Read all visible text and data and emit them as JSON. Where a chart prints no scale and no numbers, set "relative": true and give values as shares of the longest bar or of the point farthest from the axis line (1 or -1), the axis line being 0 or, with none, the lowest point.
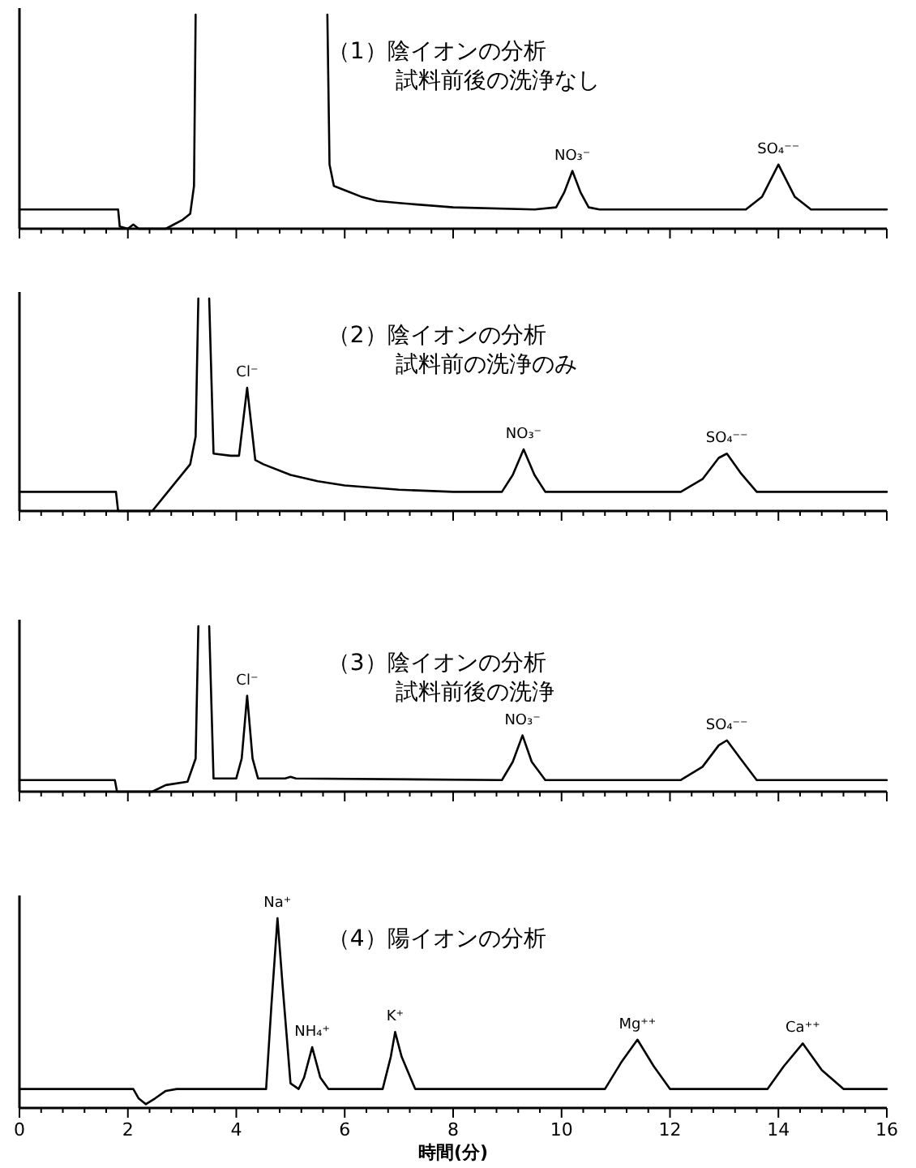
{
  "chart_data": [
    {
      "type": "line",
      "relative": true,
      "title": "（1）陰イオンの分析",
      "subtitle": "試料前後の洗浄なし",
      "xlim": [
        0,
        16
      ],
      "tick_labels": false,
      "xticks": [
        0,
        {
          "value": 0.4,
          "label": null
        },
        {
          "value": 0.8,
          "label": null
        },
        {
          "value": 1.2,
          "label": null
        },
        {
          "value": 1.6,
          "label": null
        },
        2,
        {
          "value": 2.4,
          "label": null
        },
        {
          "value": 2.8,
          "label": null
        },
        {
          "value": 3.2,
          "label": null
        },
        {
          "value": 3.6,
          "label": null
        },
        4,
        {
          "value": 4.4,
          "label": null
        },
        {
          "value": 4.8,
          "label": null
        },
        {
          "value": 5.2,
          "label": null
        },
        {
          "value": 5.6,
          "label": null
        },
        6,
        {
          "value": 6.4,
          "label": null
        },
        {
          "value": 6.8,
          "label": null
        },
        {
          "value": 7.2,
          "label": null
        },
        {
          "value": 7.6,
          "label": null
        },
        8,
        {
          "value": 8.4,
          "label": null
        },
        {
          "value": 8.8,
          "label": null
        },
        {
          "value": 9.2,
          "label": null
        },
        {
          "value": 9.6,
          "label": null
        },
        10,
        {
          "value": 10.4,
          "label": null
        },
        {
          "value": 10.8,
          "label": null
        },
        {
          "value": 11.2,
          "label": null
        },
        {
          "value": 11.6,
          "label": null
        },
        12,
        {
          "value": 12.4,
          "label": null
        },
        {
          "value": 12.8,
          "label": null
        },
        {
          "value": 13.2,
          "label": null
        },
        {
          "value": 13.6,
          "label": null
        },
        14,
        {
          "value": 14.4,
          "label": null
        },
        {
          "value": 14.8,
          "label": null
        },
        {
          "value": 15.2,
          "label": null
        },
        {
          "value": 15.6,
          "label": null
        },
        16
      ],
      "series": [
        {
          "color": "#000000",
          "x": [
            0,
            1.82,
            1.85,
            2.0,
            2.1,
            2.2,
            2.7,
            3.0,
            3.15,
            3.22,
            3.25
          ],
          "values": [
            0.09,
            0.09,
            0.01,
            0.0,
            0.02,
            0.0,
            0.0,
            0.04,
            0.07,
            0.2,
            1
          ]
        },
        {
          "color": "#000000",
          "x": [
            5.68,
            5.72,
            5.8,
            6.0,
            6.3,
            6.6,
            7.0,
            8.0,
            9.5,
            9.9,
            10.05,
            10.2,
            10.35,
            10.5,
            10.7,
            13.4,
            13.7,
            14.0,
            14.3,
            14.6,
            16
          ],
          "values": [
            1,
            0.3,
            0.2,
            0.18,
            0.15,
            0.13,
            0.12,
            0.1,
            0.09,
            0.1,
            0.17,
            0.27,
            0.17,
            0.1,
            0.09,
            0.09,
            0.15,
            0.3,
            0.15,
            0.09,
            0.09
          ]
        }
      ],
      "annotations": [
        {
          "text": "NO₃⁻",
          "x": 10.2,
          "y": 0.27
        },
        {
          "text": "SO₄⁻⁻",
          "x": 14.0,
          "y": 0.3
        }
      ]
    },
    {
      "type": "line",
      "relative": true,
      "title": "（2）陰イオンの分析",
      "subtitle": "試料前の洗浄のみ",
      "xlim": [
        0,
        16
      ],
      "tick_labels": false,
      "xticks": [
        0,
        {
          "value": 0.4,
          "label": null
        },
        {
          "value": 0.8,
          "label": null
        },
        {
          "value": 1.2,
          "label": null
        },
        {
          "value": 1.6,
          "label": null
        },
        2,
        {
          "value": 2.4,
          "label": null
        },
        {
          "value": 2.8,
          "label": null
        },
        {
          "value": 3.2,
          "label": null
        },
        {
          "value": 3.6,
          "label": null
        },
        4,
        {
          "value": 4.4,
          "label": null
        },
        {
          "value": 4.8,
          "label": null
        },
        {
          "value": 5.2,
          "label": null
        },
        {
          "value": 5.6,
          "label": null
        },
        6,
        {
          "value": 6.4,
          "label": null
        },
        {
          "value": 6.8,
          "label": null
        },
        {
          "value": 7.2,
          "label": null
        },
        {
          "value": 7.6,
          "label": null
        },
        8,
        {
          "value": 8.4,
          "label": null
        },
        {
          "value": 8.8,
          "label": null
        },
        {
          "value": 9.2,
          "label": null
        },
        {
          "value": 9.6,
          "label": null
        },
        10,
        {
          "value": 10.4,
          "label": null
        },
        {
          "value": 10.8,
          "label": null
        },
        {
          "value": 11.2,
          "label": null
        },
        {
          "value": 11.6,
          "label": null
        },
        12,
        {
          "value": 12.4,
          "label": null
        },
        {
          "value": 12.8,
          "label": null
        },
        {
          "value": 13.2,
          "label": null
        },
        {
          "value": 13.6,
          "label": null
        },
        14,
        {
          "value": 14.4,
          "label": null
        },
        {
          "value": 14.8,
          "label": null
        },
        {
          "value": 15.2,
          "label": null
        },
        {
          "value": 15.6,
          "label": null
        },
        16
      ],
      "series": [
        {
          "color": "#000000",
          "x": [
            0,
            1.78,
            1.82,
            2.45,
            2.8,
            3.15,
            3.25,
            3.3
          ],
          "values": [
            0.09,
            0.09,
            0.0,
            0.0,
            0.11,
            0.22,
            0.35,
            1
          ]
        },
        {
          "color": "#000000",
          "x": [
            3.5,
            3.58,
            3.9,
            4.05,
            4.2,
            4.35,
            4.5,
            5.0,
            5.5,
            6.0,
            7.0,
            8.0,
            8.9,
            9.1,
            9.3,
            9.5,
            9.7,
            12.2,
            12.6,
            12.9,
            13.05,
            13.3,
            13.6,
            16
          ],
          "values": [
            1,
            0.27,
            0.26,
            0.26,
            0.58,
            0.24,
            0.22,
            0.17,
            0.14,
            0.12,
            0.1,
            0.09,
            0.09,
            0.17,
            0.29,
            0.17,
            0.09,
            0.09,
            0.15,
            0.25,
            0.27,
            0.18,
            0.09,
            0.09
          ]
        }
      ],
      "annotations": [
        {
          "text": "Cl⁻",
          "x": 4.2,
          "y": 0.58
        },
        {
          "text": "NO₃⁻",
          "x": 9.3,
          "y": 0.29
        },
        {
          "text": "SO₄⁻⁻",
          "x": 13.05,
          "y": 0.27
        }
      ]
    },
    {
      "type": "line",
      "relative": true,
      "title": "（3）陰イオンの分析",
      "subtitle": "試料前後の洗浄",
      "xlim": [
        0,
        16
      ],
      "tick_labels": false,
      "xticks": [
        0,
        {
          "value": 0.4,
          "label": null
        },
        {
          "value": 0.8,
          "label": null
        },
        {
          "value": 1.2,
          "label": null
        },
        {
          "value": 1.6,
          "label": null
        },
        2,
        {
          "value": 2.4,
          "label": null
        },
        {
          "value": 2.8,
          "label": null
        },
        {
          "value": 3.2,
          "label": null
        },
        {
          "value": 3.6,
          "label": null
        },
        4,
        {
          "value": 4.4,
          "label": null
        },
        {
          "value": 4.8,
          "label": null
        },
        {
          "value": 5.2,
          "label": null
        },
        {
          "value": 5.6,
          "label": null
        },
        6,
        {
          "value": 6.4,
          "label": null
        },
        {
          "value": 6.8,
          "label": null
        },
        {
          "value": 7.2,
          "label": null
        },
        {
          "value": 7.6,
          "label": null
        },
        8,
        {
          "value": 8.4,
          "label": null
        },
        {
          "value": 8.8,
          "label": null
        },
        {
          "value": 9.2,
          "label": null
        },
        {
          "value": 9.6,
          "label": null
        },
        10,
        {
          "value": 10.4,
          "label": null
        },
        {
          "value": 10.8,
          "label": null
        },
        {
          "value": 11.2,
          "label": null
        },
        {
          "value": 11.6,
          "label": null
        },
        12,
        {
          "value": 12.4,
          "label": null
        },
        {
          "value": 12.8,
          "label": null
        },
        {
          "value": 13.2,
          "label": null
        },
        {
          "value": 13.6,
          "label": null
        },
        14,
        {
          "value": 14.4,
          "label": null
        },
        {
          "value": 14.8,
          "label": null
        },
        {
          "value": 15.2,
          "label": null
        },
        {
          "value": 15.6,
          "label": null
        },
        16
      ],
      "series": [
        {
          "color": "#000000",
          "x": [
            0,
            1.76,
            1.8,
            2.45,
            2.7,
            3.1,
            3.25,
            3.3
          ],
          "values": [
            0.07,
            0.07,
            0.0,
            0.0,
            0.04,
            0.06,
            0.2,
            1
          ]
        },
        {
          "color": "#000000",
          "x": [
            3.5,
            3.58,
            4.0,
            4.1,
            4.2,
            4.3,
            4.4,
            4.9,
            5.0,
            5.1,
            8.9,
            9.1,
            9.28,
            9.45,
            9.7,
            12.2,
            12.6,
            12.9,
            13.05,
            13.3,
            13.6,
            16
          ],
          "values": [
            1,
            0.08,
            0.08,
            0.2,
            0.58,
            0.2,
            0.08,
            0.08,
            0.09,
            0.08,
            0.07,
            0.18,
            0.34,
            0.18,
            0.07,
            0.07,
            0.15,
            0.28,
            0.31,
            0.2,
            0.07,
            0.07
          ]
        }
      ],
      "annotations": [
        {
          "text": "Cl⁻",
          "x": 4.2,
          "y": 0.58
        },
        {
          "text": "NO₃⁻",
          "x": 9.28,
          "y": 0.34
        },
        {
          "text": "SO₄⁻⁻",
          "x": 13.05,
          "y": 0.31
        }
      ]
    },
    {
      "type": "line",
      "relative": true,
      "title": "（4）陽イオンの分析",
      "xlabel": "時間(分)",
      "xlim": [
        0,
        16
      ],
      "tick_labels": "x",
      "xticks": [
        0,
        {
          "value": 0.4,
          "label": null
        },
        {
          "value": 0.8,
          "label": null
        },
        {
          "value": 1.2,
          "label": null
        },
        {
          "value": 1.6,
          "label": null
        },
        2,
        {
          "value": 2.4,
          "label": null
        },
        {
          "value": 2.8,
          "label": null
        },
        {
          "value": 3.2,
          "label": null
        },
        {
          "value": 3.6,
          "label": null
        },
        4,
        {
          "value": 4.4,
          "label": null
        },
        {
          "value": 4.8,
          "label": null
        },
        {
          "value": 5.2,
          "label": null
        },
        {
          "value": 5.6,
          "label": null
        },
        6,
        {
          "value": 6.4,
          "label": null
        },
        {
          "value": 6.8,
          "label": null
        },
        {
          "value": 7.2,
          "label": null
        },
        {
          "value": 7.6,
          "label": null
        },
        8,
        {
          "value": 8.4,
          "label": null
        },
        {
          "value": 8.8,
          "label": null
        },
        {
          "value": 9.2,
          "label": null
        },
        {
          "value": 9.6,
          "label": null
        },
        10,
        {
          "value": 10.4,
          "label": null
        },
        {
          "value": 10.8,
          "label": null
        },
        {
          "value": 11.2,
          "label": null
        },
        {
          "value": 11.6,
          "label": null
        },
        12,
        {
          "value": 12.4,
          "label": null
        },
        {
          "value": 12.8,
          "label": null
        },
        {
          "value": 13.2,
          "label": null
        },
        {
          "value": 13.6,
          "label": null
        },
        14,
        {
          "value": 14.4,
          "label": null
        },
        {
          "value": 14.8,
          "label": null
        },
        {
          "value": 15.2,
          "label": null
        },
        {
          "value": 15.6,
          "label": null
        },
        16
      ],
      "series": [
        {
          "color": "#000000",
          "x": [
            0,
            2.1,
            2.2,
            2.33,
            2.5,
            2.7,
            2.9,
            4.55,
            4.65,
            4.76,
            4.85,
            5.0,
            5.15,
            5.25,
            5.4,
            5.55,
            5.7,
            6.7,
            6.85,
            6.93,
            7.05,
            7.3,
            10.8,
            11.1,
            11.4,
            11.7,
            12.0,
            13.8,
            14.1,
            14.45,
            14.8,
            15.2,
            16
          ],
          "values": [
            0.1,
            0.1,
            0.05,
            0.02,
            0.05,
            0.09,
            0.1,
            0.1,
            0.55,
            1,
            0.66,
            0.13,
            0.1,
            0.16,
            0.32,
            0.16,
            0.1,
            0.1,
            0.27,
            0.4,
            0.27,
            0.1,
            0.1,
            0.24,
            0.36,
            0.22,
            0.1,
            0.1,
            0.22,
            0.34,
            0.2,
            0.1,
            0.1
          ]
        }
      ],
      "annotations": [
        {
          "text": "Na⁺",
          "x": 4.76,
          "y": 1
        },
        {
          "text": "NH₄⁺",
          "x": 5.4,
          "y": 0.32
        },
        {
          "text": "K⁺",
          "x": 6.93,
          "y": 0.4
        },
        {
          "text": "Mg⁺⁺",
          "x": 11.4,
          "y": 0.36
        },
        {
          "text": "Ca⁺⁺",
          "x": 14.45,
          "y": 0.34
        }
      ]
    }
  ]
}
